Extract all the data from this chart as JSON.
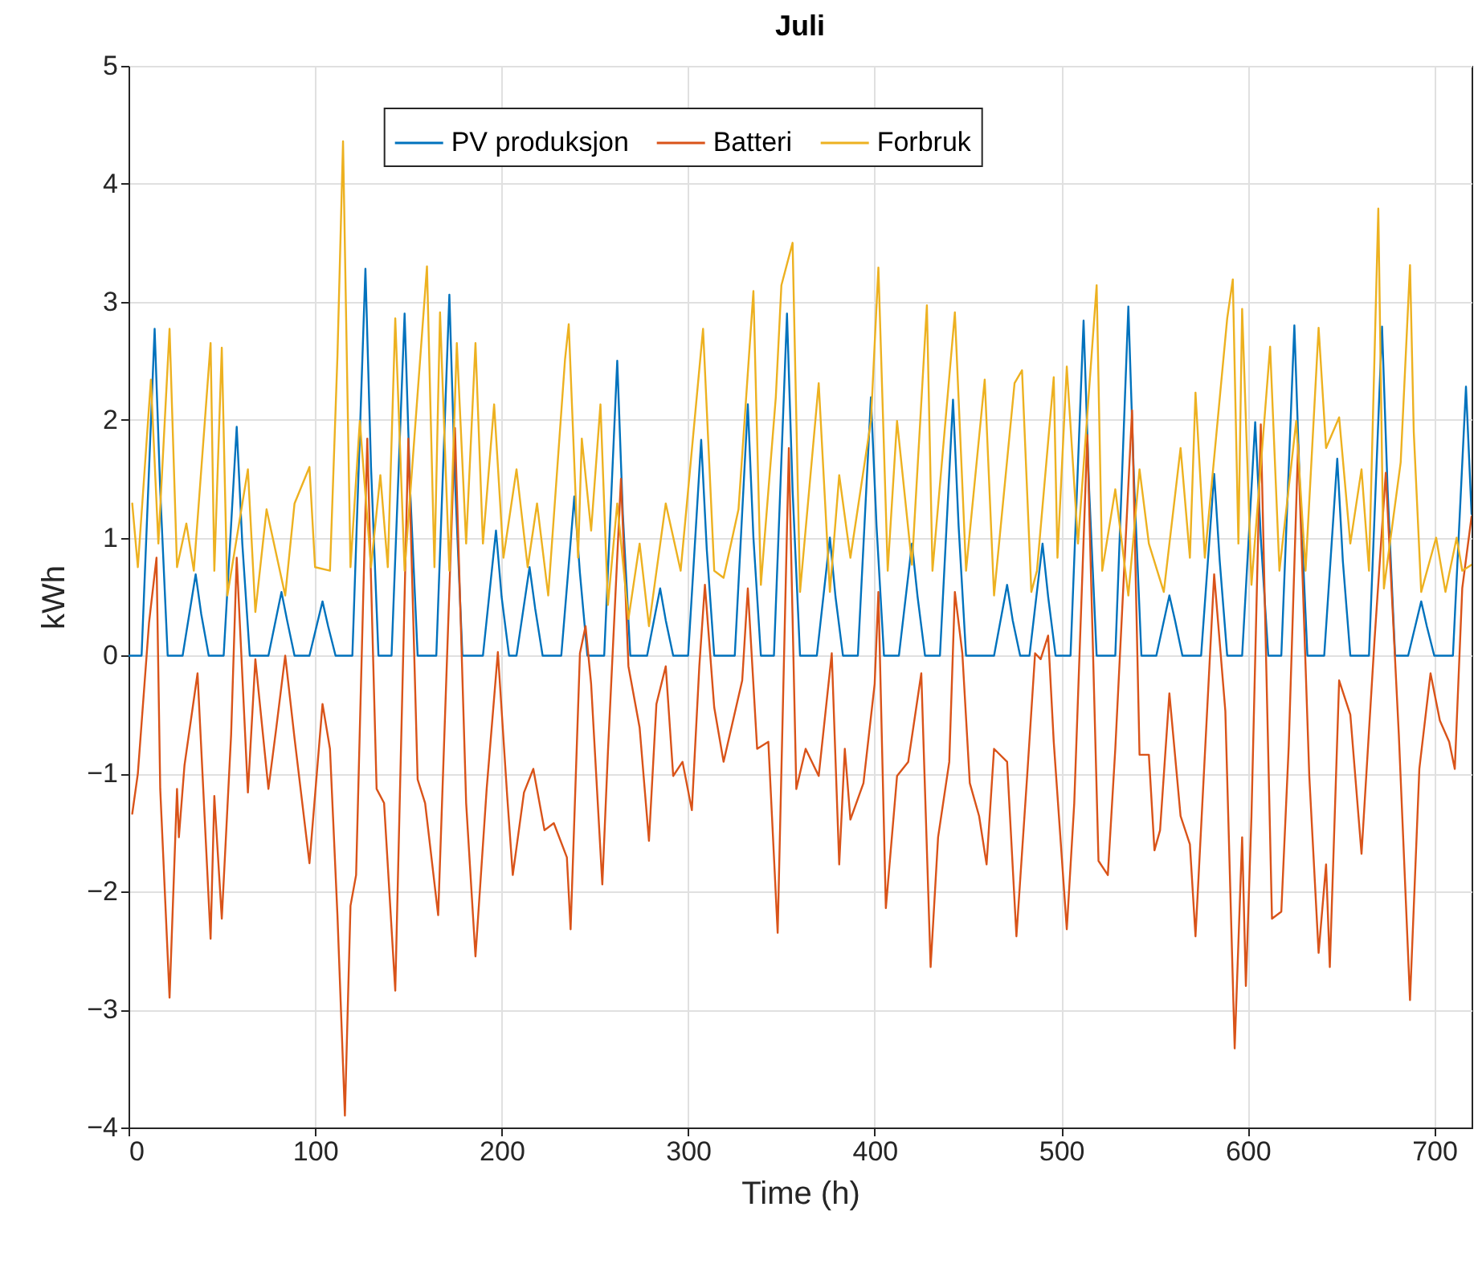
{
  "chart_data": {
    "type": "line",
    "title": "Juli",
    "xlabel": "Time (h)",
    "ylabel": "kWh",
    "xlim": [
      0,
      720
    ],
    "xticks": [
      0,
      100,
      200,
      300,
      400,
      500,
      600,
      700
    ],
    "ylim": [
      -4,
      5
    ],
    "yticks": [
      -4,
      -3,
      -2,
      -1,
      0,
      1,
      2,
      3,
      4,
      5
    ],
    "grid": true,
    "legend": "top",
    "line_style": "solid",
    "marker": "none",
    "series": [
      {
        "name": "PV produksjon",
        "color": "#0072bd",
        "x": [
          0,
          7,
          14,
          17,
          21,
          29,
          36,
          39,
          43,
          51,
          58,
          61,
          65,
          75,
          82,
          85,
          89,
          97,
          104,
          107,
          111,
          120,
          127,
          130,
          134,
          141,
          148,
          151,
          155,
          165,
          172,
          175,
          179,
          190,
          197,
          200,
          204,
          208,
          215,
          218,
          222,
          232,
          239,
          242,
          246,
          255,
          262,
          265,
          269,
          278,
          285,
          288,
          292,
          300,
          307,
          310,
          314,
          325,
          332,
          335,
          339,
          346,
          353,
          356,
          360,
          369,
          376,
          379,
          383,
          391,
          398,
          401,
          405,
          413,
          420,
          423,
          427,
          435,
          442,
          445,
          449,
          464,
          471,
          474,
          478,
          483,
          490,
          493,
          497,
          505,
          512,
          515,
          519,
          529,
          536,
          539,
          543,
          551,
          558,
          561,
          565,
          575,
          582,
          585,
          589,
          597,
          604,
          607,
          611,
          618,
          625,
          628,
          632,
          641,
          648,
          651,
          655,
          665,
          672,
          675,
          679,
          686,
          693,
          696,
          700,
          710,
          717,
          720
        ],
        "values": [
          0,
          0,
          2.77,
          1.4,
          0,
          0,
          0.69,
          0.35,
          0,
          0,
          1.94,
          0.95,
          0,
          0,
          0.54,
          0.3,
          0,
          0,
          0.46,
          0.25,
          0,
          0,
          3.28,
          1.6,
          0,
          0,
          2.9,
          1.4,
          0,
          0,
          3.06,
          1.5,
          0,
          0,
          1.06,
          0.5,
          0,
          0,
          0.75,
          0.4,
          0,
          0,
          1.35,
          0.7,
          0,
          0,
          2.5,
          1.2,
          0,
          0,
          0.57,
          0.3,
          0,
          0,
          1.83,
          0.9,
          0,
          0,
          2.13,
          1.0,
          0,
          0,
          2.9,
          1.4,
          0,
          0,
          1.0,
          0.5,
          0,
          0,
          2.19,
          1.1,
          0,
          0,
          0.95,
          0.5,
          0,
          0,
          2.17,
          1.1,
          0,
          0,
          0.6,
          0.3,
          0,
          0,
          0.95,
          0.5,
          0,
          0,
          2.84,
          1.4,
          0,
          0,
          2.96,
          1.5,
          0,
          0,
          0.51,
          0.3,
          0,
          0,
          1.54,
          0.8,
          0,
          0,
          1.98,
          1.0,
          0,
          0,
          2.8,
          1.4,
          0,
          0,
          1.67,
          0.8,
          0,
          0,
          2.79,
          1.4,
          0,
          0,
          0.46,
          0.25,
          0,
          0,
          2.28,
          1.2
        ]
      },
      {
        "name": "Batteri",
        "color": "#d95319",
        "x": [
          2,
          5,
          11,
          15,
          17,
          22,
          26,
          27,
          30,
          37,
          39,
          44,
          46,
          50,
          55,
          58,
          64,
          68,
          75,
          79,
          84,
          89,
          97,
          104,
          108,
          112,
          116,
          119,
          122,
          128,
          133,
          137,
          143,
          150,
          155,
          159,
          166,
          175,
          181,
          186,
          192,
          198,
          203,
          206,
          212,
          217,
          223,
          228,
          235,
          237,
          242,
          245,
          248,
          254,
          257,
          264,
          268,
          274,
          279,
          283,
          288,
          292,
          297,
          302,
          306,
          309,
          314,
          319,
          329,
          332,
          337,
          343,
          348,
          354,
          358,
          363,
          370,
          377,
          381,
          384,
          387,
          394,
          400,
          402,
          406,
          412,
          418,
          425,
          430,
          434,
          440,
          443,
          447,
          451,
          456,
          460,
          464,
          471,
          476,
          482,
          486,
          489,
          493,
          496,
          503,
          507,
          514,
          520,
          525,
          529,
          538,
          542,
          547,
          550,
          553,
          558,
          564,
          569,
          572,
          582,
          588,
          593,
          597,
          599,
          602,
          607,
          613,
          618,
          622,
          627,
          633,
          638,
          642,
          644,
          649,
          655,
          661,
          668,
          674,
          681,
          687,
          692,
          698,
          703,
          708,
          711,
          715,
          720
        ],
        "values": [
          -1.34,
          -1.0,
          0.28,
          0.83,
          -1.13,
          -2.9,
          -1.13,
          -1.54,
          -0.93,
          -0.15,
          -0.79,
          -2.4,
          -1.19,
          -2.23,
          -0.67,
          0.83,
          -1.16,
          -0.03,
          -1.13,
          -0.64,
          0,
          -0.7,
          -1.76,
          -0.41,
          -0.79,
          -2.2,
          -3.9,
          -2.12,
          -1.86,
          1.84,
          -1.13,
          -1.25,
          -2.84,
          1.84,
          -1.05,
          -1.25,
          -2.2,
          1.93,
          -1.25,
          -2.55,
          -1.13,
          0.03,
          -1.19,
          -1.86,
          -1.16,
          -0.96,
          -1.48,
          -1.42,
          -1.71,
          -2.32,
          0.02,
          0.25,
          -0.24,
          -1.94,
          -0.82,
          1.5,
          -0.09,
          -0.61,
          -1.57,
          -0.41,
          -0.09,
          -1.02,
          -0.9,
          -1.31,
          -0.09,
          0.6,
          -0.44,
          -0.9,
          -0.21,
          0.57,
          -0.79,
          -0.73,
          -2.35,
          1.76,
          -1.13,
          -0.79,
          -1.02,
          0.02,
          -1.77,
          -0.79,
          -1.39,
          -1.08,
          -0.24,
          0.54,
          -2.14,
          -1.02,
          -0.9,
          -0.15,
          -2.64,
          -1.54,
          -0.9,
          0.54,
          0.02,
          -1.08,
          -1.36,
          -1.77,
          -0.79,
          -0.9,
          -2.38,
          -0.96,
          0.02,
          -0.03,
          0.17,
          -0.73,
          -2.32,
          -1.25,
          1.87,
          -1.74,
          -1.86,
          -0.79,
          2.08,
          -0.84,
          -0.84,
          -1.65,
          -1.48,
          -0.32,
          -1.36,
          -1.6,
          -2.38,
          0.69,
          -0.47,
          -3.33,
          -1.54,
          -2.8,
          -1.36,
          1.96,
          -2.23,
          -2.17,
          -0.76,
          1.79,
          -1.02,
          -2.52,
          -1.77,
          -2.64,
          -0.21,
          -0.5,
          -1.68,
          0.14,
          1.55,
          -0.67,
          -2.92,
          -0.96,
          -0.15,
          -0.55,
          -0.73,
          -0.96,
          0.57,
          1.18
        ]
      },
      {
        "name": "Forbruk",
        "color": "#edb120",
        "x": [
          2,
          5,
          12,
          16,
          22,
          26,
          31,
          35,
          44,
          46,
          50,
          53,
          64,
          68,
          74,
          84,
          89,
          97,
          100,
          108,
          112,
          115,
          119,
          124,
          130,
          135,
          139,
          143,
          148,
          160,
          164,
          167,
          172,
          176,
          181,
          186,
          190,
          196,
          201,
          208,
          214,
          219,
          225,
          234,
          236,
          241,
          243,
          248,
          253,
          257,
          262,
          268,
          274,
          279,
          288,
          296,
          308,
          314,
          319,
          327,
          335,
          339,
          347,
          350,
          356,
          360,
          370,
          376,
          381,
          387,
          398,
          402,
          407,
          412,
          420,
          428,
          431,
          443,
          449,
          459,
          464,
          475,
          479,
          484,
          487,
          496,
          498,
          503,
          509,
          519,
          522,
          529,
          536,
          542,
          547,
          555,
          564,
          569,
          572,
          577,
          589,
          592,
          595,
          597,
          602,
          612,
          617,
          626,
          631,
          638,
          642,
          649,
          655,
          661,
          665,
          670,
          673,
          682,
          687,
          689,
          693,
          701,
          706,
          712,
          715,
          720
        ],
        "values": [
          1.29,
          0.75,
          2.34,
          0.95,
          2.77,
          0.75,
          1.12,
          0.72,
          2.65,
          0.72,
          2.61,
          0.51,
          1.58,
          0.37,
          1.24,
          0.51,
          1.29,
          1.6,
          0.75,
          0.72,
          2.54,
          4.36,
          0.75,
          1.99,
          0.75,
          1.53,
          0.75,
          2.86,
          0.72,
          3.3,
          0.75,
          2.91,
          0.72,
          2.65,
          0.95,
          2.65,
          0.95,
          2.13,
          0.83,
          1.58,
          0.75,
          1.29,
          0.51,
          2.51,
          2.81,
          0.83,
          1.84,
          1.06,
          2.13,
          0.43,
          1.29,
          0.31,
          0.95,
          0.25,
          1.29,
          0.72,
          2.77,
          0.72,
          0.66,
          1.24,
          3.09,
          0.6,
          2.19,
          3.14,
          3.5,
          0.54,
          2.31,
          0.54,
          1.53,
          0.83,
          1.99,
          3.29,
          0.72,
          1.99,
          0.77,
          2.97,
          0.72,
          2.91,
          0.72,
          2.34,
          0.51,
          2.31,
          2.42,
          0.54,
          0.72,
          2.36,
          0.83,
          2.45,
          0.95,
          3.14,
          0.72,
          1.41,
          0.51,
          1.58,
          0.95,
          0.54,
          1.76,
          0.83,
          2.23,
          0.83,
          2.86,
          3.19,
          0.95,
          2.94,
          0.6,
          2.62,
          0.72,
          1.99,
          0.72,
          2.78,
          1.76,
          2.02,
          0.95,
          1.58,
          0.72,
          3.79,
          0.57,
          1.64,
          3.31,
          1.9,
          0.54,
          1.0,
          0.54,
          1.0,
          0.72,
          0.77
        ]
      }
    ]
  }
}
